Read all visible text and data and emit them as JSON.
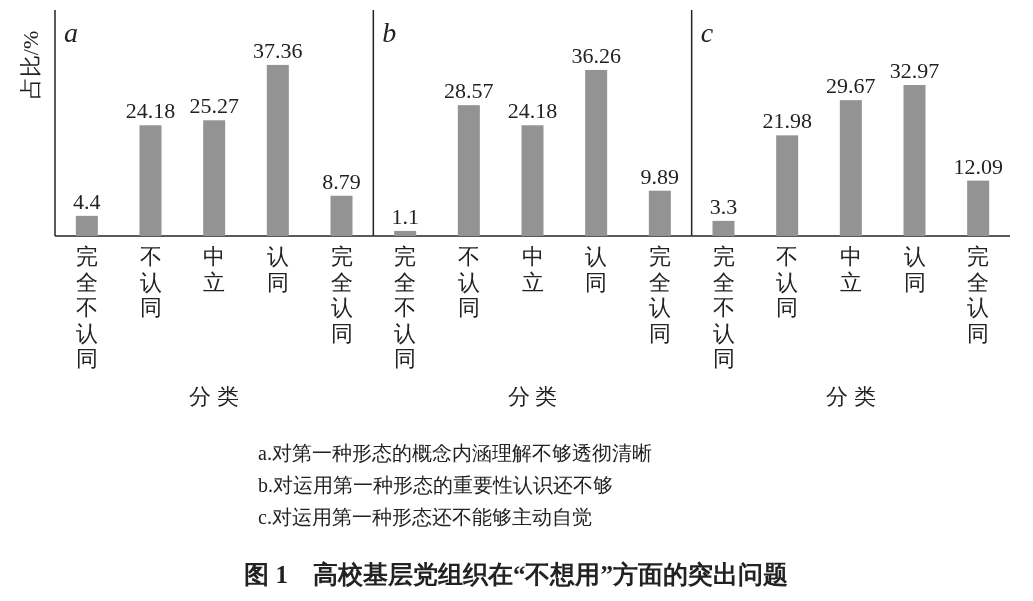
{
  "chart_data": [
    {
      "type": "bar",
      "title": "a",
      "xlabel": "分 类",
      "ylabel": "占比/%",
      "categories": [
        "完全不认同",
        "不认同",
        "中立",
        "认同",
        "完全认同"
      ],
      "values": [
        4.4,
        24.18,
        25.27,
        37.36,
        8.79
      ],
      "color": "#939393",
      "data_labels": true,
      "annotations": [
        "a.对第一种形态的概念内涵理解不够透彻清晰",
        "b.对运用第一种形态的重要性认识还不够",
        "c.对运用第一种形态还不能够主动自觉",
        "图 1　高校基层党组织在“不想用”方面的突出问题"
      ]
    },
    {
      "type": "bar",
      "title": "b",
      "xlabel": "分 类",
      "categories": [
        "完全不认同",
        "不认同",
        "中立",
        "认同",
        "完全认同"
      ],
      "values": [
        1.1,
        28.57,
        24.18,
        36.26,
        9.89
      ],
      "color": "#939393",
      "data_labels": true
    },
    {
      "type": "bar",
      "title": "c",
      "xlabel": "分 类",
      "categories": [
        "完全不认同",
        "不认同",
        "中立",
        "认同",
        "完全认同"
      ],
      "values": [
        3.3,
        21.98,
        29.67,
        32.97,
        12.09
      ],
      "color": "#939393",
      "data_labels": true
    }
  ]
}
